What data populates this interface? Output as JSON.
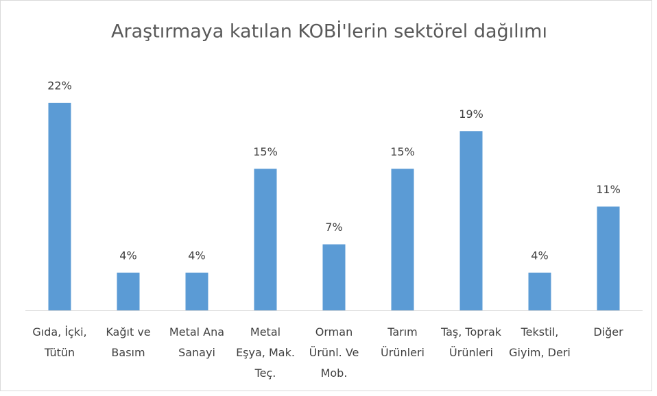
{
  "chart_data": {
    "type": "bar",
    "title": "Araştırmaya katılan KOBİ'lerin sektörel dağılımı",
    "categories": [
      "Gıda, İçki, Tütün",
      "Kağıt ve Basım",
      "Metal Ana Sanayi",
      "Metal Eşya, Mak. Teç.",
      "Orman Ürünl. Ve Mob.",
      "Tarım Ürünleri",
      "Taş, Toprak Ürünleri",
      "Tekstil, Giyim, Deri",
      "Diğer"
    ],
    "values": [
      22,
      4,
      4,
      15,
      7,
      15,
      19,
      4,
      11
    ],
    "value_labels": [
      "22%",
      "4%",
      "4%",
      "15%",
      "7%",
      "15%",
      "19%",
      "4%",
      "11%"
    ],
    "color": "#5b9bd5"
  }
}
